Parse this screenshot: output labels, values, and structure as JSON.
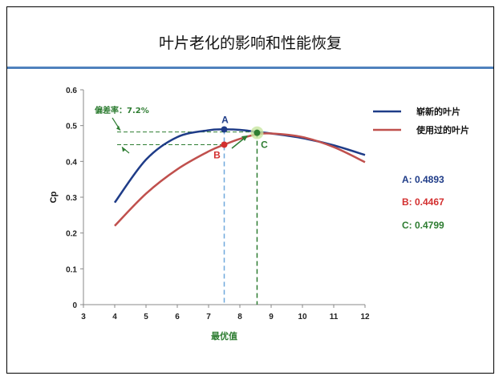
{
  "page_title": "叶片老化的影响和性能恢复",
  "colors": {
    "new": "#1f3c88",
    "used": "#c0504d",
    "green": "#2e7d32",
    "blue_dash": "#6fa8dc",
    "rule": "#4f81bd"
  },
  "chart_data": {
    "type": "line",
    "title": "",
    "xlabel": "最优值",
    "ylabel": "Cp",
    "xlim": [
      3,
      12
    ],
    "ylim": [
      0,
      0.6
    ],
    "x_ticks": [
      "3",
      "4",
      "5",
      "6",
      "7",
      "8",
      "9",
      "10",
      "11",
      "12"
    ],
    "y_ticks": [
      "0",
      "0.1",
      "0.2",
      "0.3",
      "0.4",
      "0.5",
      "0.6"
    ],
    "grid": false,
    "legend_position": "right",
    "x": [
      4,
      5,
      6,
      7,
      7.5,
      8,
      8.5,
      9,
      10,
      11,
      12
    ],
    "series": [
      {
        "name": "崭新的叶片",
        "values": [
          0.285,
          0.405,
          0.468,
          0.487,
          0.4893,
          0.488,
          0.483,
          0.478,
          0.465,
          0.445,
          0.418
        ]
      },
      {
        "name": "使用过的叶片",
        "values": [
          0.22,
          0.31,
          0.378,
          0.428,
          0.4467,
          0.463,
          0.475,
          0.478,
          0.468,
          0.44,
          0.398
        ]
      }
    ],
    "points": [
      {
        "label": "A",
        "x": 7.5,
        "y": 0.4893,
        "value_text": "A: 0.4893"
      },
      {
        "label": "B",
        "x": 7.5,
        "y": 0.4467,
        "value_text": "B: 0.4467"
      },
      {
        "label": "C",
        "x": 8.55,
        "y": 0.4799,
        "value_text": "C: 0.4799"
      }
    ],
    "annotation": "偏差率：7.2%"
  }
}
